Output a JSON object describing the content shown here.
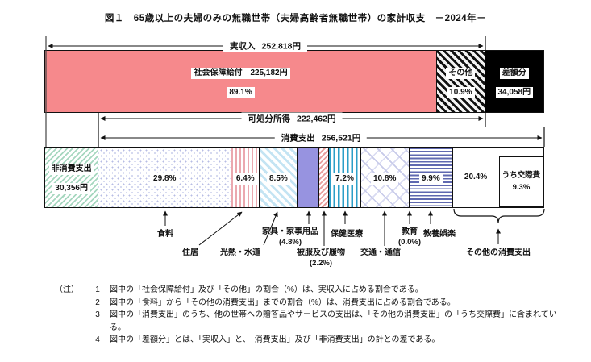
{
  "title": "図１　65歳以上の夫婦のみの無職世帯（夫婦高齢者無職世帯）の家計収支　－2024年－",
  "chart_data": {
    "type": "bar",
    "unit": "円",
    "income": {
      "label": "実収入",
      "amount": "252,818円",
      "value": 252818
    },
    "income_segments": [
      {
        "name": "社会保障給付",
        "amount": "225,182円",
        "value": 225182,
        "pct": "89.1%",
        "pattern": "pink-solid"
      },
      {
        "name": "その他",
        "pct": "10.9%",
        "pattern": "black-diag"
      }
    ],
    "deficit": {
      "name": "差額分",
      "amount": "34,058円",
      "value": 34058,
      "pattern": "black"
    },
    "disposable_income": {
      "label": "可処分所得",
      "amount": "222,462円",
      "value": 222462
    },
    "consumption": {
      "label": "消費支出",
      "amount": "256,521円",
      "value": 256521
    },
    "non_consumption": {
      "name": "非消費支出",
      "amount": "30,356円",
      "value": 30356,
      "pattern": "green-diag"
    },
    "consumption_segments": [
      {
        "name": "食料",
        "pct": 29.8,
        "bar_label": "29.8%",
        "pattern": "dots"
      },
      {
        "name": "住居",
        "pct": 6.4,
        "bar_label": "6.4%",
        "pattern": "pink-v"
      },
      {
        "name": "光熱・水道",
        "pct": 8.5,
        "bar_label": "8.5%",
        "pattern": "blue-diag"
      },
      {
        "name": "家具・家事用品",
        "pct": 4.8,
        "paren_label": "(4.8%)",
        "pattern": "purple"
      },
      {
        "name": "被服及び履物",
        "pct": 2.2,
        "paren_label": "(2.2%)",
        "pattern": "red-diag"
      },
      {
        "name": "保健医療",
        "pct": 7.2,
        "bar_label": "7.2%",
        "pattern": "teal-v"
      },
      {
        "name": "交通・通信",
        "pct": 10.8,
        "bar_label": "10.8%",
        "pattern": "chevron"
      },
      {
        "name": "教育",
        "pct": 0.0,
        "paren_label": "(0.0%)",
        "pattern": "none"
      },
      {
        "name": "教養娯楽",
        "pct": 9.9,
        "bar_label": "9.9%",
        "pattern": "navy-h"
      },
      {
        "name": "その他の消費支出",
        "pct": 20.4,
        "bar_label": "20.4%",
        "pattern": "white",
        "inner_box": {
          "name": "うち交際費",
          "pct_label": "9.3%"
        }
      }
    ]
  },
  "notes": {
    "prefix": "（注）",
    "items": [
      {
        "num": "1",
        "text": "図中の「社会保障給付」及び「その他」の割合（%）は、実収入に占める割合である。"
      },
      {
        "num": "2",
        "text": "図中の「食料」から「その他の消費支出」までの割合（%）は、消費支出に占める割合である。"
      },
      {
        "num": "3",
        "text": "図中の「消費支出」のうち、他の世帯への贈答品やサービスの支出は、「その他の消費支出」の「うち交際費」に含まれている。"
      },
      {
        "num": "4",
        "text": "図中の「差額分」とは、「実収入」と、「消費支出」及び「非消費支出」の計との差である。"
      }
    ]
  }
}
